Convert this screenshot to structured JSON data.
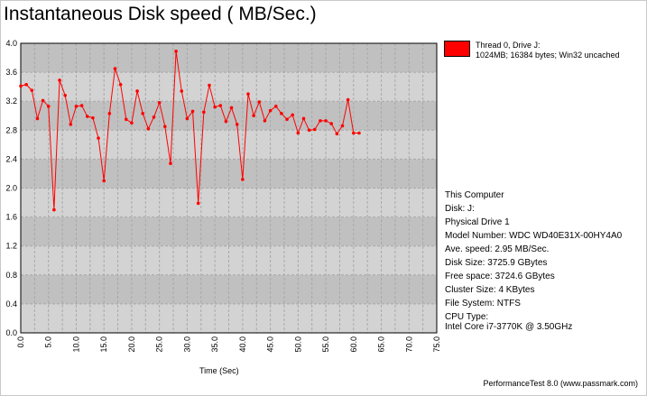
{
  "window": {
    "title": "Instantaneous Disk speed ( MB/Sec.)",
    "footer": "PerformanceTest 8.0 (www.passmark.com)"
  },
  "legend": {
    "line1": "Thread 0, Drive J:",
    "line2": "1024MB; 16384 bytes; Win32 uncached",
    "color": "#ff0000"
  },
  "info": {
    "heading": "This Computer",
    "disk": "Disk: J:",
    "physical_drive": "Physical Drive 1",
    "model": "Model Number: WDC WD40E31X-00HY4A0",
    "ave_speed": "Ave. speed: 2.95 MB/Sec.",
    "disk_size": "Disk Size: 3725.9 GBytes",
    "free_space": "Free space: 3724.6 GBytes",
    "cluster_size": "Cluster Size: 4 KBytes",
    "file_system": "File System: NTFS",
    "cpu_label": "CPU Type:",
    "cpu_value": "Intel Core i7-3770K @ 3.50GHz"
  },
  "chart_data": {
    "type": "line",
    "title": "Instantaneous Disk speed ( MB/Sec.)",
    "xlabel": "Time (Sec)",
    "ylabel": "",
    "xlim": [
      0,
      75
    ],
    "ylim": [
      0,
      4
    ],
    "x_ticks": [
      "0.0",
      "2.5",
      "5.0",
      "7.5",
      "10.0",
      "12.5",
      "15.0",
      "17.5",
      "20.0",
      "22.5",
      "25.0",
      "27.5",
      "30.0",
      "32.5",
      "35.0",
      "37.5",
      "40.0",
      "42.5",
      "45.0",
      "47.5",
      "50.0",
      "52.5",
      "55.0",
      "57.5",
      "60.0",
      "62.5",
      "65.0",
      "67.5",
      "70.0",
      "72.5",
      "75.0"
    ],
    "x_tick_labels": [
      "0.0",
      "",
      "5.0",
      "",
      "10.0",
      "",
      "15.0",
      "",
      "20.0",
      "",
      "25.0",
      "",
      "30.0",
      "",
      "35.0",
      "",
      "40.0",
      "",
      "45.0",
      "",
      "50.0",
      "",
      "55.0",
      "",
      "60.0",
      "",
      "65.0",
      "",
      "70.0",
      "",
      "75.0"
    ],
    "y_ticks": [
      "0.0",
      "0.4",
      "0.8",
      "1.2",
      "1.6",
      "2.0",
      "2.4",
      "2.8",
      "3.2",
      "3.6",
      "4.0"
    ],
    "grid": true,
    "legend_position": "top-right",
    "series": [
      {
        "name": "Thread 0, Drive J:",
        "color": "#ff0000",
        "x": [
          0,
          1,
          2,
          3,
          4,
          5,
          6,
          7,
          8,
          9,
          10,
          11,
          12,
          13,
          14,
          15,
          16,
          17,
          18,
          19,
          20,
          21,
          22,
          23,
          24,
          25,
          26,
          27,
          28,
          29,
          30,
          31,
          32,
          33,
          34,
          35,
          36,
          37,
          38,
          39,
          40,
          41,
          42,
          43,
          44,
          45,
          46,
          47,
          48,
          49,
          50,
          51,
          52,
          53,
          54,
          55,
          56,
          57,
          58,
          59,
          60,
          61
        ],
        "y": [
          3.41,
          3.43,
          3.35,
          2.96,
          3.21,
          3.13,
          1.7,
          3.49,
          3.28,
          2.88,
          3.13,
          3.14,
          2.99,
          2.97,
          2.69,
          2.1,
          3.03,
          3.65,
          3.43,
          2.95,
          2.9,
          3.34,
          3.03,
          2.82,
          2.98,
          3.18,
          2.85,
          2.34,
          3.89,
          3.34,
          2.96,
          3.06,
          1.79,
          3.05,
          3.42,
          3.12,
          3.14,
          2.92,
          3.11,
          2.88,
          2.12,
          3.3,
          3.0,
          3.19,
          2.93,
          3.07,
          3.13,
          3.03,
          2.95,
          3.01,
          2.76,
          2.96,
          2.8,
          2.81,
          2.93,
          2.93,
          2.89,
          2.75,
          2.86,
          3.22,
          2.76,
          2.76
        ]
      }
    ]
  }
}
